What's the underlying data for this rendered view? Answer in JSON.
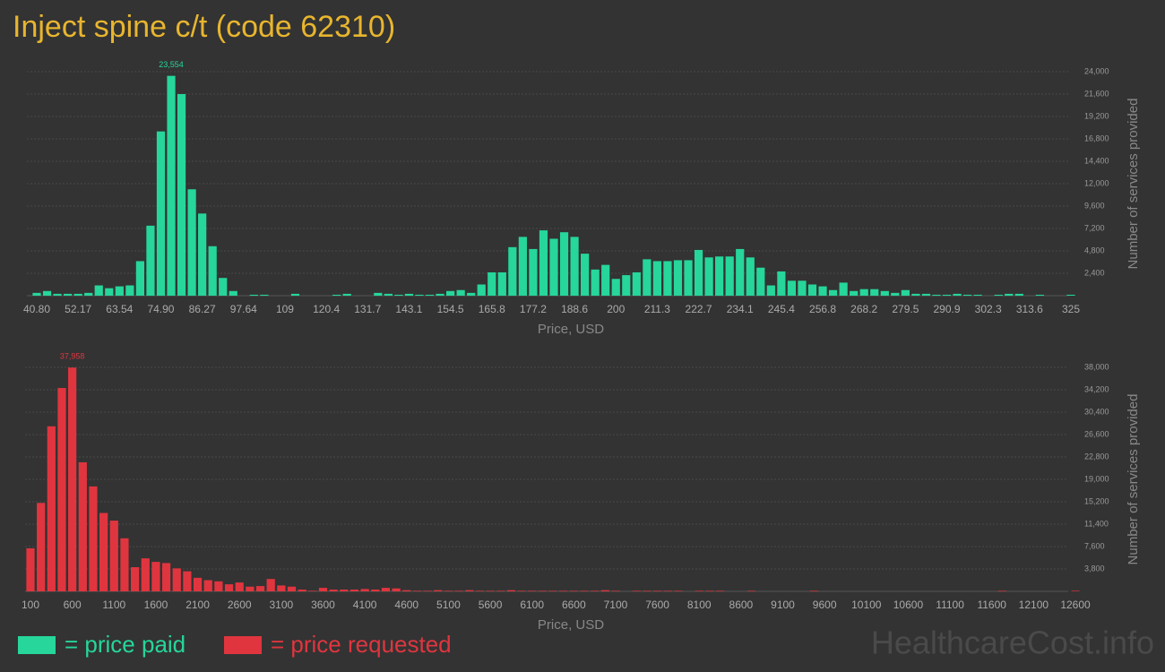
{
  "title": "Inject spine c/t (code 62310)",
  "watermark": "HealthcareCost.info",
  "chart_data": [
    {
      "type": "bar",
      "xlabel": "Price, USD",
      "ylabel": "Number of services provided",
      "grid": true,
      "ylim": [
        0,
        24000
      ],
      "yticks": [
        {
          "value": 2400,
          "label": "2,400"
        },
        {
          "value": 4800,
          "label": "4,800"
        },
        {
          "value": 7200,
          "label": "7,200"
        },
        {
          "value": 9600,
          "label": "9,600"
        },
        {
          "value": 12000,
          "label": "12,000"
        },
        {
          "value": 14400,
          "label": "14,400"
        },
        {
          "value": 16800,
          "label": "16,800"
        },
        {
          "value": 19200,
          "label": "19,200"
        },
        {
          "value": 21600,
          "label": "21,600"
        },
        {
          "value": 24000,
          "label": "24,000"
        }
      ],
      "categories": [
        "40.80",
        null,
        null,
        null,
        "52.17",
        null,
        null,
        null,
        "63.54",
        null,
        null,
        null,
        "74.90",
        null,
        null,
        null,
        "86.27",
        null,
        null,
        null,
        "97.64",
        null,
        null,
        null,
        "109",
        null,
        null,
        null,
        "120.4",
        null,
        null,
        null,
        "131.7",
        null,
        null,
        null,
        "143.1",
        null,
        null,
        null,
        "154.5",
        null,
        null,
        null,
        "165.8",
        null,
        null,
        null,
        "177.2",
        null,
        null,
        null,
        "188.6",
        null,
        null,
        null,
        "200",
        null,
        null,
        null,
        "211.3",
        null,
        null,
        null,
        "222.7",
        null,
        null,
        null,
        "234.1",
        null,
        null,
        null,
        "245.4",
        null,
        null,
        null,
        "256.8",
        null,
        null,
        null,
        "268.2",
        null,
        null,
        null,
        "279.5",
        null,
        null,
        null,
        "290.9",
        null,
        null,
        null,
        "302.3",
        null,
        null,
        null,
        "313.6",
        null,
        null,
        null,
        "325"
      ],
      "series": [
        {
          "name": "= price paid",
          "color": "#26d69a",
          "values": [
            300,
            500,
            200,
            200,
            200,
            300,
            1100,
            800,
            1000,
            1100,
            3700,
            7500,
            17600,
            23554,
            21600,
            11400,
            8800,
            5300,
            1900,
            500,
            0,
            100,
            100,
            0,
            0,
            200,
            0,
            0,
            0,
            100,
            200,
            0,
            0,
            300,
            200,
            100,
            200,
            100,
            100,
            200,
            500,
            600,
            300,
            1200,
            2500,
            2500,
            5200,
            6300,
            5000,
            7000,
            6100,
            6800,
            6300,
            4500,
            2800,
            3300,
            1800,
            2200,
            2500,
            3900,
            3700,
            3700,
            3800,
            3800,
            4900,
            4100,
            4200,
            4200,
            5000,
            4100,
            3000,
            1100,
            2600,
            1600,
            1600,
            1200,
            1000,
            600,
            1400,
            500,
            700,
            700,
            500,
            300,
            600,
            200,
            200,
            100,
            100,
            200,
            100,
            100,
            0,
            100,
            200,
            200,
            0,
            100,
            0,
            0,
            100
          ],
          "value_labels": [
            null,
            null,
            null,
            null,
            null,
            null,
            null,
            null,
            null,
            null,
            null,
            null,
            null,
            "23,554",
            null,
            null,
            null,
            null,
            null,
            null,
            null,
            null,
            null,
            null,
            null,
            null,
            null,
            null,
            null,
            null,
            null,
            null,
            null,
            null,
            null,
            null,
            null,
            null,
            null,
            null,
            null,
            null,
            null,
            null,
            null,
            null,
            null,
            null,
            null,
            null,
            null,
            null,
            null,
            null,
            null,
            null,
            null,
            null,
            null,
            null,
            null,
            null,
            null,
            null,
            null,
            null,
            null,
            null,
            null,
            null,
            null,
            null,
            null,
            null,
            null,
            null,
            null,
            null,
            null,
            null,
            null,
            null,
            null,
            null,
            null,
            null,
            null,
            null,
            null,
            null,
            null,
            null,
            null,
            null,
            null,
            null,
            null,
            null,
            null,
            null,
            null
          ]
        }
      ]
    },
    {
      "type": "bar",
      "xlabel": "Price, USD",
      "ylabel": "Number of services provided",
      "grid": true,
      "ylim": [
        0,
        38000
      ],
      "yticks": [
        {
          "value": 3800,
          "label": "3,800"
        },
        {
          "value": 7600,
          "label": "7,600"
        },
        {
          "value": 11400,
          "label": "11,400"
        },
        {
          "value": 15200,
          "label": "15,200"
        },
        {
          "value": 19000,
          "label": "19,000"
        },
        {
          "value": 22800,
          "label": "22,800"
        },
        {
          "value": 26600,
          "label": "26,600"
        },
        {
          "value": 30400,
          "label": "30,400"
        },
        {
          "value": 34200,
          "label": "34,200"
        },
        {
          "value": 38000,
          "label": "38,000"
        }
      ],
      "categories": [
        "100",
        null,
        null,
        null,
        "600",
        null,
        null,
        null,
        "1100",
        null,
        null,
        null,
        "1600",
        null,
        null,
        null,
        "2100",
        null,
        null,
        null,
        "2600",
        null,
        null,
        null,
        "3100",
        null,
        null,
        null,
        "3600",
        null,
        null,
        null,
        "4100",
        null,
        null,
        null,
        "4600",
        null,
        null,
        null,
        "5100",
        null,
        null,
        null,
        "5600",
        null,
        null,
        null,
        "6100",
        null,
        null,
        null,
        "6600",
        null,
        null,
        null,
        "7100",
        null,
        null,
        null,
        "7600",
        null,
        null,
        null,
        "8100",
        null,
        null,
        null,
        "8600",
        null,
        null,
        null,
        "9100",
        null,
        null,
        null,
        "9600",
        null,
        null,
        null,
        "10100",
        null,
        null,
        null,
        "10600",
        null,
        null,
        null,
        "11100",
        null,
        null,
        null,
        "11600",
        null,
        null,
        null,
        "12100",
        null,
        null,
        null,
        "12600"
      ],
      "series": [
        {
          "name": "= price requested",
          "color": "#e0353f",
          "values": [
            7300,
            15000,
            28000,
            34500,
            37958,
            21900,
            17800,
            13300,
            12000,
            9000,
            4100,
            5600,
            5000,
            4800,
            3900,
            3400,
            2300,
            1900,
            1700,
            1200,
            1500,
            800,
            900,
            2100,
            1000,
            800,
            300,
            100,
            600,
            300,
            300,
            300,
            400,
            300,
            600,
            500,
            200,
            100,
            100,
            200,
            100,
            100,
            200,
            100,
            100,
            100,
            200,
            100,
            100,
            100,
            100,
            100,
            100,
            100,
            100,
            200,
            100,
            0,
            100,
            100,
            100,
            100,
            100,
            0,
            100,
            100,
            100,
            0,
            0,
            100,
            0,
            0,
            0,
            0,
            0,
            100,
            0,
            0,
            0,
            0,
            0,
            0,
            0,
            0,
            0,
            0,
            0,
            0,
            0,
            0,
            0,
            0,
            0,
            100,
            0,
            0,
            0,
            0,
            0,
            0,
            100
          ],
          "value_labels": [
            null,
            null,
            null,
            null,
            "37,958",
            null,
            null,
            null,
            null,
            null,
            null,
            null,
            null,
            null,
            null,
            null,
            null,
            null,
            null,
            null,
            null,
            null,
            null,
            null,
            null,
            null,
            null,
            null,
            null,
            null,
            null,
            null,
            null,
            null,
            null,
            null,
            null,
            null,
            null,
            null,
            null,
            null,
            null,
            null,
            null,
            null,
            null,
            null,
            null,
            null,
            null,
            null,
            null,
            null,
            null,
            null,
            null,
            null,
            null,
            null,
            null,
            null,
            null,
            null,
            null,
            null,
            null,
            null,
            null,
            null,
            null,
            null,
            null,
            null,
            null,
            null,
            null,
            null,
            null,
            null,
            null,
            null,
            null,
            null,
            null,
            null,
            null,
            null,
            null,
            null,
            null,
            null,
            null,
            null,
            null,
            null,
            null,
            null,
            null,
            null,
            null
          ]
        }
      ]
    }
  ]
}
